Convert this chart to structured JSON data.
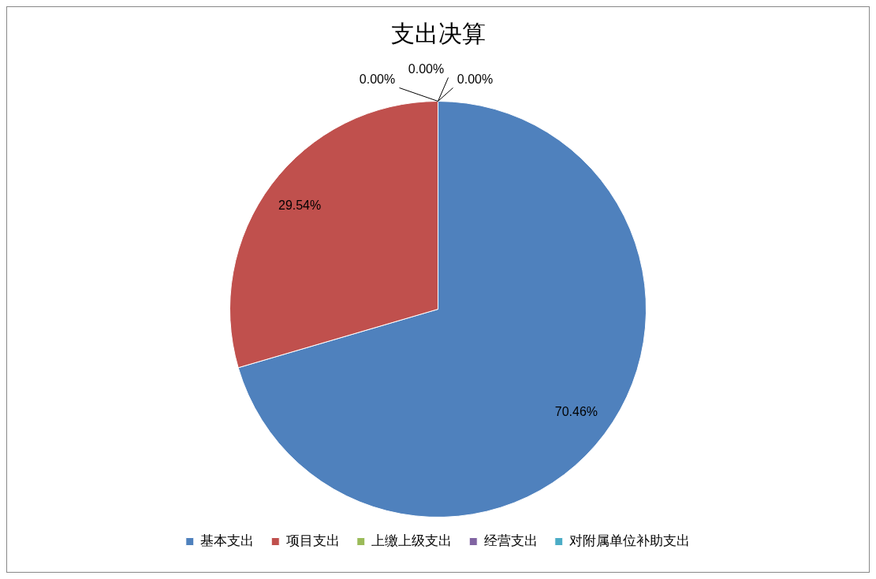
{
  "chart_data": {
    "type": "pie",
    "title": "支出决算",
    "categories": [
      "基本支出",
      "项目支出",
      "上缴上级支出",
      "经营支出",
      "对附属单位补助支出"
    ],
    "values": [
      70.46,
      29.54,
      0,
      0,
      0
    ],
    "colors": [
      "#4f81bd",
      "#c0504d",
      "#9bbb59",
      "#8064a2",
      "#4bacc6"
    ],
    "value_labels": [
      "70.46%",
      "29.54%",
      "0.00%",
      "0.00%",
      "0.00%"
    ],
    "legend": "bottom"
  }
}
